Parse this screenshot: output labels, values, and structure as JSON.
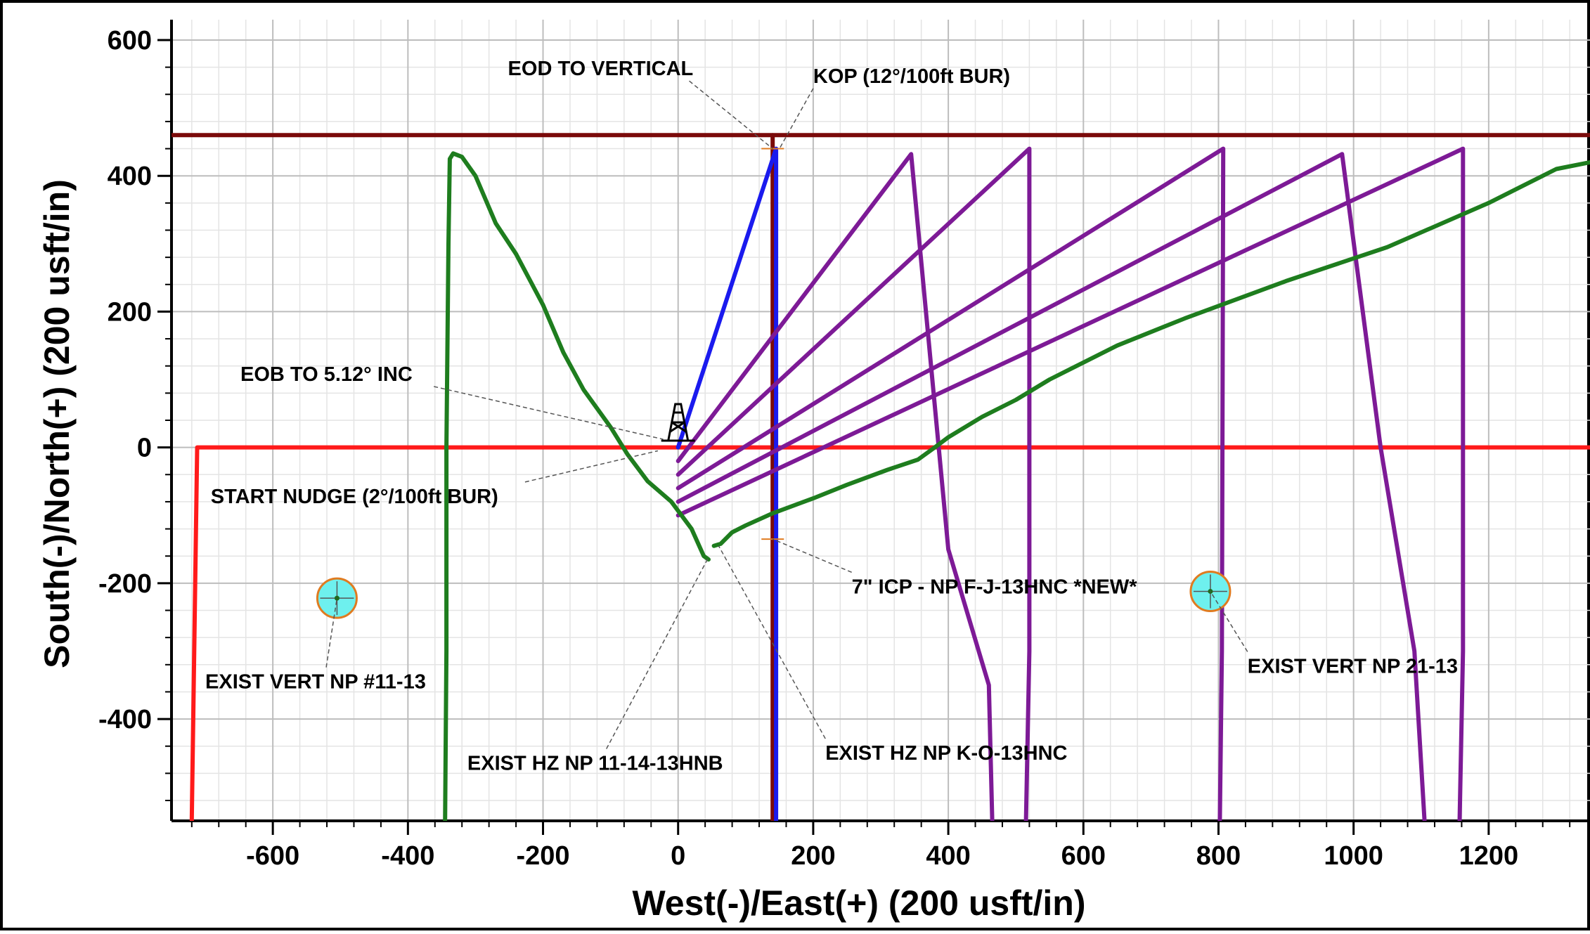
{
  "chart_data": {
    "type": "line",
    "title": "",
    "xlabel": "West(-)/East(+) (200 usft/in)",
    "ylabel": "South(-)/North(+) (200 usft/in)",
    "xlim": [
      -750,
      1350
    ],
    "ylim": [
      -550,
      630
    ],
    "x_ticks": [
      -600,
      -400,
      -200,
      0,
      200,
      400,
      600,
      800,
      1000,
      1200
    ],
    "y_ticks": [
      600,
      400,
      200,
      0,
      -200,
      -400
    ],
    "grid": true,
    "minor_grid": true,
    "colors": {
      "lease_line_red": "#ff1a1a",
      "hardline_maroon": "#7a0a0a",
      "plan_blue": "#1a1aee",
      "existing_purple": "#7d1a96",
      "existing_green": "#1e7d1e",
      "well_marker_fill": "#6ef0ee",
      "well_marker_ring": "#e07b20",
      "leader_line": "#555555",
      "axis": "#000000",
      "grid_major": "#bdbdbd",
      "grid_minor": "#e4e4e4"
    },
    "series": [
      {
        "color": "#ff1a1a",
        "points": [
          [
            -720,
            -550
          ],
          [
            -712,
            0
          ],
          [
            1350,
            0
          ]
        ]
      },
      {
        "color": "#7a0a0a",
        "points": [
          [
            -750,
            460
          ],
          [
            1350,
            460
          ]
        ]
      },
      {
        "color": "#7a0a0a",
        "points": [
          [
            140,
            460
          ],
          [
            140,
            -550
          ]
        ]
      },
      {
        "color": "#1a1aee",
        "points": [
          [
            0,
            0
          ],
          [
            145,
            440
          ],
          [
            145,
            -550
          ]
        ]
      },
      {
        "color": "#7d1a96",
        "points": [
          [
            0,
            -20
          ],
          [
            345,
            432
          ],
          [
            400,
            -150
          ],
          [
            460,
            -350
          ],
          [
            465,
            -550
          ]
        ]
      },
      {
        "color": "#7d1a96",
        "points": [
          [
            0,
            -40
          ],
          [
            520,
            440
          ],
          [
            520,
            -300
          ],
          [
            515,
            -550
          ]
        ]
      },
      {
        "color": "#7d1a96",
        "points": [
          [
            0,
            -60
          ],
          [
            807,
            440
          ],
          [
            805,
            -300
          ],
          [
            802,
            -550
          ]
        ]
      },
      {
        "color": "#7d1a96",
        "points": [
          [
            0,
            -80
          ],
          [
            983,
            432
          ],
          [
            1040,
            0
          ],
          [
            1090,
            -300
          ],
          [
            1105,
            -550
          ]
        ]
      },
      {
        "color": "#7d1a96",
        "points": [
          [
            0,
            -100
          ],
          [
            1162,
            440
          ],
          [
            1162,
            -300
          ],
          [
            1157,
            -550
          ]
        ]
      },
      {
        "color": "#1e7d1e",
        "points": [
          [
            -345,
            -550
          ],
          [
            -343,
            -300
          ],
          [
            -343,
            0
          ],
          [
            -340,
            300
          ],
          [
            -338,
            425
          ],
          [
            -333,
            433
          ],
          [
            -320,
            428
          ],
          [
            -300,
            400
          ],
          [
            -270,
            330
          ],
          [
            -240,
            285
          ],
          [
            -200,
            210
          ],
          [
            -170,
            140
          ],
          [
            -140,
            85
          ],
          [
            -100,
            30
          ],
          [
            -75,
            -10
          ],
          [
            -45,
            -50
          ],
          [
            -10,
            -80
          ],
          [
            20,
            -120
          ],
          [
            38,
            -160
          ],
          [
            45,
            -165
          ]
        ]
      },
      {
        "color": "#1e7d1e",
        "points": [
          [
            53,
            -145
          ],
          [
            63,
            -142
          ],
          [
            80,
            -125
          ],
          [
            100,
            -115
          ],
          [
            140,
            -97
          ],
          [
            200,
            -75
          ],
          [
            250,
            -55
          ],
          [
            310,
            -33
          ],
          [
            355,
            -18
          ],
          [
            380,
            0
          ],
          [
            400,
            15
          ],
          [
            450,
            45
          ],
          [
            500,
            70
          ],
          [
            550,
            100
          ],
          [
            650,
            150
          ],
          [
            750,
            190
          ],
          [
            900,
            245
          ],
          [
            1050,
            295
          ],
          [
            1200,
            360
          ],
          [
            1300,
            410
          ],
          [
            1350,
            420
          ]
        ]
      }
    ],
    "well_markers": [
      {
        "x": -505,
        "y": -222
      },
      {
        "x": 788,
        "y": -212
      }
    ],
    "rig_symbol": {
      "x": 0,
      "y": 10
    },
    "annotations": [
      {
        "text": "EOD TO VERTICAL",
        "label_x": -252,
        "label_y": 548,
        "target_x": 140,
        "target_y": 440
      },
      {
        "text": "KOP (12°/100ft BUR)",
        "label_x": 200,
        "label_y": 537,
        "target_x": 150,
        "target_y": 440
      },
      {
        "text": "EOB TO 5.12° INC",
        "label_x": -648,
        "label_y": 98,
        "target_x": -22,
        "target_y": 12
      },
      {
        "text": "START NUDGE (2°/100ft BUR)",
        "label_x": -692,
        "label_y": -82,
        "target_x": -30,
        "target_y": -5
      },
      {
        "text": "7\" ICP - NP F-J-13HNC *NEW*",
        "label_x": 257,
        "label_y": -215,
        "target_x": 140,
        "target_y": -135
      },
      {
        "text": "EXIST VERT NP #11-13",
        "label_x": -700,
        "label_y": -355,
        "target_x": -505,
        "target_y": -222
      },
      {
        "text": "EXIST VERT NP 21-13",
        "label_x": 843,
        "label_y": -332,
        "target_x": 788,
        "target_y": -212
      },
      {
        "text": "EXIST HZ NP 11-14-13HNB",
        "label_x": -312,
        "label_y": -475,
        "target_x": 45,
        "target_y": -162
      },
      {
        "text": "EXIST HZ NP K-O-13HNC",
        "label_x": 218,
        "label_y": -460,
        "target_x": 60,
        "target_y": -145
      }
    ]
  }
}
